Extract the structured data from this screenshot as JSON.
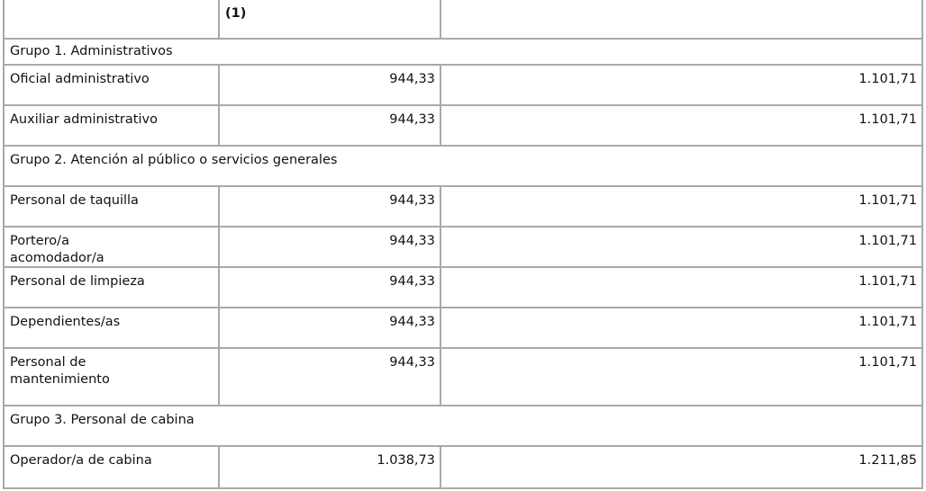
{
  "table": {
    "header": {
      "col2": "(1)"
    },
    "rows": [
      {
        "group": "Grupo 1. Administrativos"
      },
      {
        "label": "Oficial administrativo",
        "values": [
          "944,33",
          "1.101,71"
        ]
      },
      {
        "label": "Auxiliar administrativo",
        "values": [
          "944,33",
          "1.101,71"
        ]
      },
      {
        "group": "Grupo 2. Atención al público o servicios generales"
      },
      {
        "label": "Personal de taquilla",
        "values": [
          "944,33",
          "1.101,71"
        ]
      },
      {
        "label": "Portero/a acomodador/a",
        "values": [
          "944,33",
          "1.101,71"
        ]
      },
      {
        "label": "Personal de limpieza",
        "values": [
          "944,33",
          "1.101,71"
        ]
      },
      {
        "label": "Dependientes/as",
        "values": [
          "944,33",
          "1.101,71"
        ]
      },
      {
        "label": "Personal de mantenimiento",
        "values": [
          "944,33",
          "1.101,71"
        ]
      },
      {
        "group": "Grupo 3. Personal de cabina"
      },
      {
        "label": "Operador/a de cabina",
        "values": [
          "1.038,73",
          "1.211,85"
        ]
      }
    ]
  }
}
